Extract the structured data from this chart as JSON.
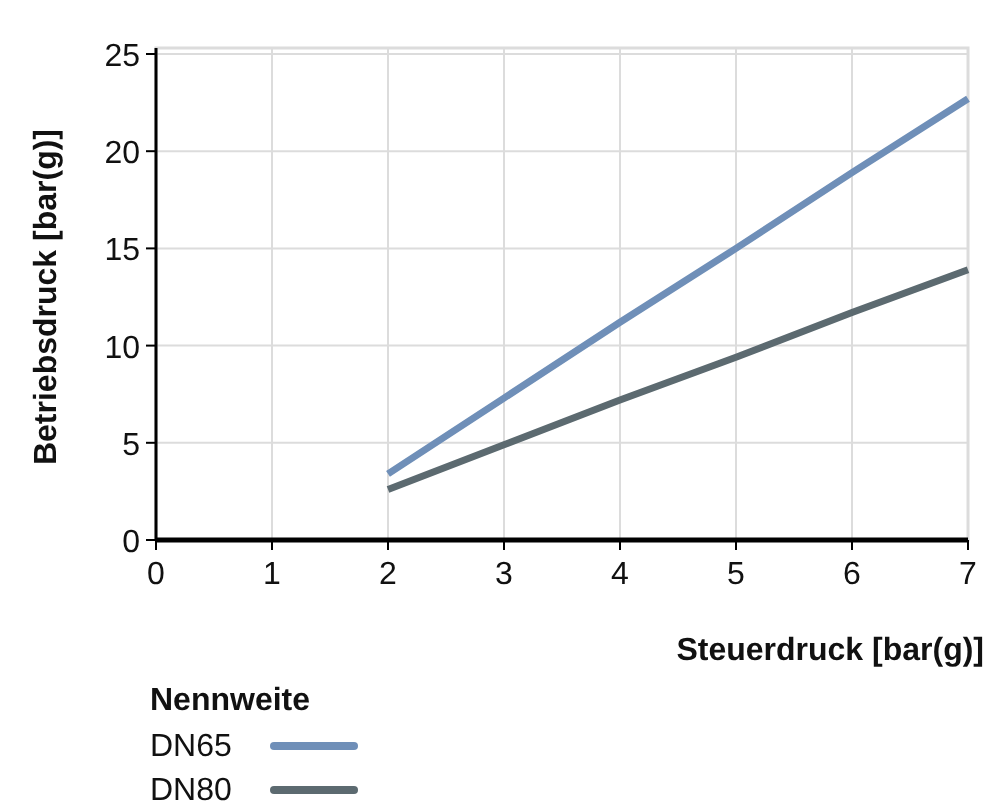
{
  "chart_data": {
    "type": "line",
    "xlabel": "Steuerdruck [bar(g)]",
    "ylabel": "Betriebsdruck [bar(g)]",
    "legend_title": "Nennweite",
    "x": [
      2,
      3,
      4,
      5,
      6,
      7
    ],
    "series": [
      {
        "name": "DN65",
        "color": "#6f8fb8",
        "values": [
          3.4,
          7.3,
          11.2,
          15.0,
          18.9,
          22.7
        ]
      },
      {
        "name": "DN80",
        "color": "#5c6a70",
        "values": [
          2.6,
          4.9,
          7.2,
          9.4,
          11.7,
          13.9
        ]
      }
    ],
    "xlim": [
      0,
      7
    ],
    "ylim": [
      0,
      25
    ],
    "xticks": [
      0,
      1,
      2,
      3,
      4,
      5,
      6,
      7
    ],
    "yticks": [
      0,
      5,
      10,
      15,
      20,
      25
    ],
    "grid": true,
    "legend": "bottom left",
    "marker": "none",
    "line_style": "solid"
  }
}
